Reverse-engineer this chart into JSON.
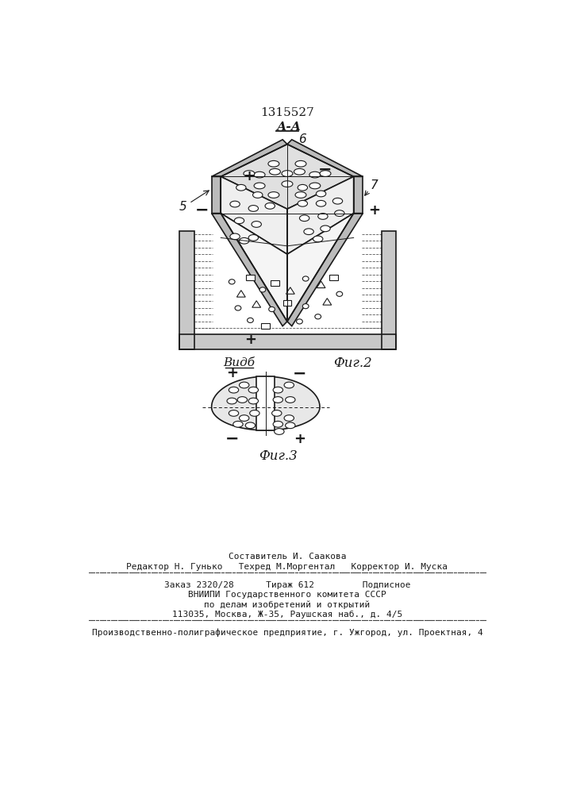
{
  "patent_number": "1315527",
  "fig2_label": "Фиг.2",
  "fig3_label": "Фиг.3",
  "vid_label": "Видб",
  "aa_label": "А-А",
  "label5": "5",
  "label6": "6",
  "label7": "7",
  "line_color": "#1a1a1a",
  "footer_line1": "Составитель И. Саакова",
  "footer_line2": "Редактор Н. Гунько   Техред М.Моргентал   Корректор И. Муска",
  "footer_line3": "Заказ 2320/28      Тираж 612         Подписное",
  "footer_line4": "ВНИИПИ Государственного комитета СССР",
  "footer_line5": "по делам изобретений и открытий",
  "footer_line6": "113035, Москва, Ж-35, Раушская наб., д. 4/5",
  "footer_line7": "Производственно-полиграфическое предприятие, г. Ужгород, ул. Проектная, 4"
}
